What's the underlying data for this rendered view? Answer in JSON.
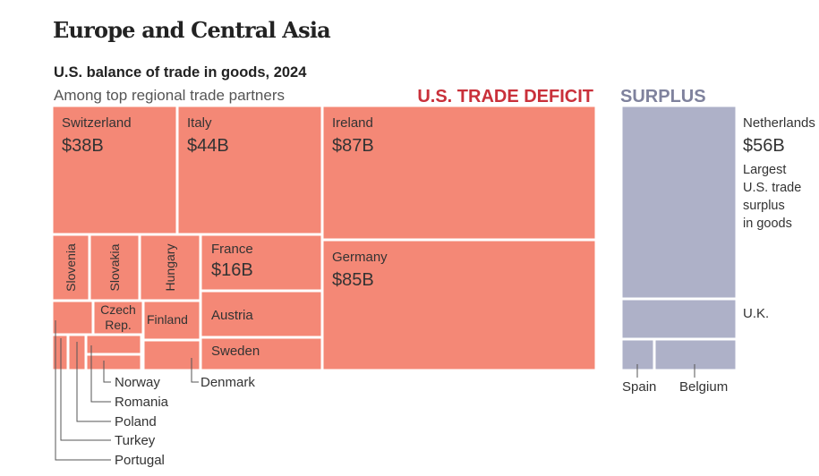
{
  "section_title": "Europe and Central Asia",
  "chart_title": "U.S. balance of trade in goods, 2024",
  "chart_subtitle": "Among top regional trade partners",
  "colors": {
    "deficit": "#f48876",
    "surplus": "#aeb1c8",
    "deficit_text": "#c9303a",
    "surplus_text": "#7f829d",
    "label": "#333333",
    "leader": "#555555"
  },
  "chart_data": {
    "type": "treemap",
    "title": "U.S. balance of trade in goods, 2024",
    "subtitle": "Among top regional trade partners",
    "groups": [
      {
        "label": "U.S. TRADE DEFICIT",
        "items": [
          {
            "name": "Switzerland",
            "value": 38,
            "value_label": "$38B"
          },
          {
            "name": "Italy",
            "value": 44,
            "value_label": "$44B"
          },
          {
            "name": "Ireland",
            "value": 87,
            "value_label": "$87B"
          },
          {
            "name": "Germany",
            "value": 85,
            "value_label": "$85B"
          },
          {
            "name": "France",
            "value": 16,
            "value_label": "$16B"
          },
          {
            "name": "Slovenia"
          },
          {
            "name": "Slovakia"
          },
          {
            "name": "Hungary"
          },
          {
            "name": "Austria"
          },
          {
            "name": "Czech Rep."
          },
          {
            "name": "Finland"
          },
          {
            "name": "Sweden"
          },
          {
            "name": "Denmark"
          },
          {
            "name": "Norway"
          },
          {
            "name": "Romania"
          },
          {
            "name": "Poland"
          },
          {
            "name": "Turkey"
          },
          {
            "name": "Portugal"
          }
        ]
      },
      {
        "label": "SURPLUS",
        "items": [
          {
            "name": "Netherlands",
            "value": 56,
            "value_label": "$56B",
            "note": "Largest U.S. trade surplus in goods"
          },
          {
            "name": "U.K."
          },
          {
            "name": "Spain"
          },
          {
            "name": "Belgium"
          }
        ]
      }
    ]
  }
}
